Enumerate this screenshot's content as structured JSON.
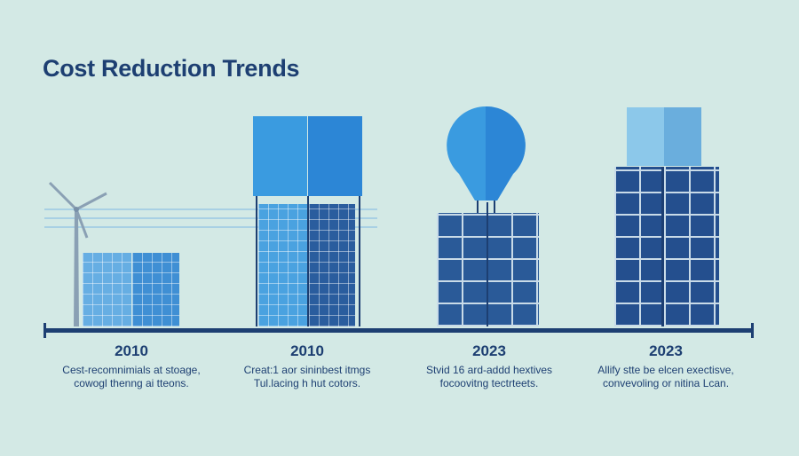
{
  "title": "Cost Reduction Trends",
  "colors": {
    "background": "#d3e9e5",
    "navy": "#1d3f72",
    "blue": "#3a9be0",
    "light_blue": "#8cc8ea",
    "panel_dark": "#24508f"
  },
  "items": [
    {
      "year": "2010",
      "line1": "Cest-recomnimials at stoage,",
      "line2": "cowogl thenng ai tteons.",
      "icon": "wind-turbine-solar-panel"
    },
    {
      "year": "2010",
      "line1": "Creat:1 aor sininbest itmgs",
      "line2": "Tul.lacing h hut cotors.",
      "icon": "box-solar-panel"
    },
    {
      "year": "2023",
      "line1": "Stvid 16 ard-addd hextives",
      "line2": "focoovitng tectrteets.",
      "icon": "balloon-solar-panel"
    },
    {
      "year": "2023",
      "line1": "Allify stte be elcen exectisve,",
      "line2": "convevoling or nitina Lcan.",
      "icon": "cube-solar-panel"
    }
  ]
}
